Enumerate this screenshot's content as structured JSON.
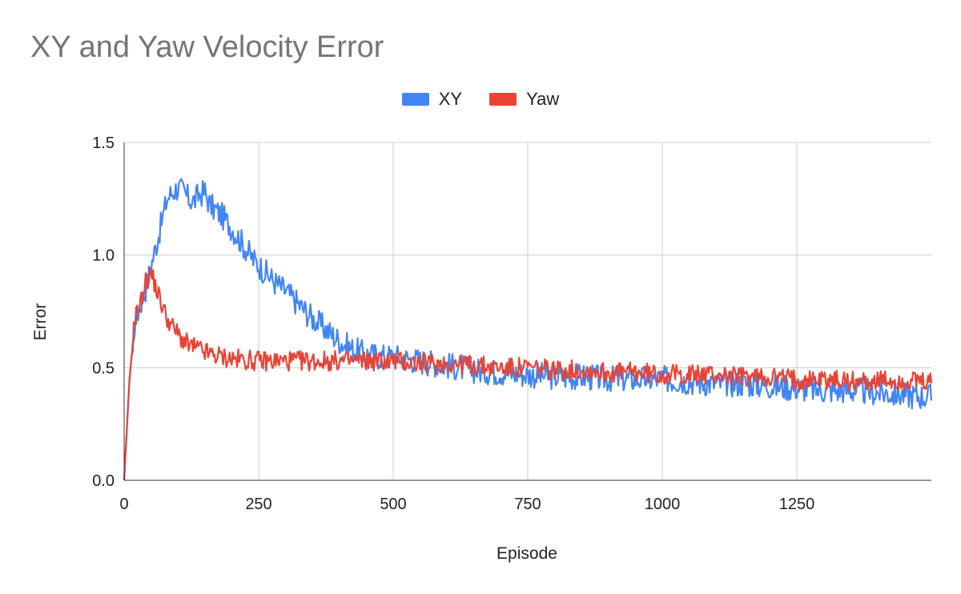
{
  "chart_data": {
    "type": "line",
    "title": "XY and Yaw Velocity Error",
    "xlabel": "Episode",
    "ylabel": "Error",
    "xlim": [
      0,
      1500
    ],
    "ylim": [
      0,
      1.5
    ],
    "x_ticks": [
      "0",
      "250",
      "500",
      "750",
      "1000",
      "1250"
    ],
    "y_ticks": [
      "0.0",
      "0.5",
      "1.0",
      "1.5"
    ],
    "grid": true,
    "legend_position": "top",
    "series": [
      {
        "name": "XY",
        "color": "#4285F4",
        "x": [
          0,
          10,
          20,
          30,
          40,
          50,
          60,
          70,
          80,
          90,
          100,
          110,
          120,
          130,
          140,
          150,
          160,
          170,
          180,
          200,
          220,
          240,
          260,
          280,
          300,
          325,
          350,
          375,
          400,
          425,
          450,
          475,
          500,
          525,
          550,
          575,
          600,
          625,
          650,
          700,
          750,
          800,
          850,
          900,
          950,
          1000,
          1050,
          1100,
          1150,
          1200,
          1250,
          1300,
          1350,
          1400,
          1450,
          1500
        ],
        "values": [
          0.0,
          0.45,
          0.7,
          0.78,
          0.85,
          0.95,
          1.05,
          1.15,
          1.25,
          1.28,
          1.3,
          1.28,
          1.25,
          1.24,
          1.27,
          1.28,
          1.22,
          1.2,
          1.18,
          1.12,
          1.05,
          0.98,
          0.93,
          0.88,
          0.84,
          0.78,
          0.72,
          0.67,
          0.62,
          0.58,
          0.56,
          0.55,
          0.55,
          0.54,
          0.53,
          0.52,
          0.51,
          0.5,
          0.49,
          0.48,
          0.47,
          0.46,
          0.46,
          0.45,
          0.45,
          0.45,
          0.44,
          0.43,
          0.43,
          0.42,
          0.41,
          0.4,
          0.4,
          0.39,
          0.38,
          0.37
        ]
      },
      {
        "name": "Yaw",
        "color": "#EA4335",
        "x": [
          0,
          10,
          20,
          30,
          40,
          50,
          60,
          70,
          80,
          90,
          100,
          110,
          120,
          140,
          160,
          180,
          200,
          250,
          300,
          350,
          400,
          450,
          500,
          550,
          600,
          650,
          700,
          750,
          800,
          850,
          900,
          950,
          1000,
          1050,
          1100,
          1150,
          1200,
          1250,
          1300,
          1350,
          1400,
          1450,
          1500
        ],
        "values": [
          0.0,
          0.45,
          0.72,
          0.78,
          0.88,
          0.92,
          0.85,
          0.78,
          0.72,
          0.68,
          0.65,
          0.62,
          0.6,
          0.58,
          0.56,
          0.55,
          0.54,
          0.53,
          0.53,
          0.53,
          0.53,
          0.53,
          0.53,
          0.52,
          0.52,
          0.51,
          0.5,
          0.5,
          0.49,
          0.49,
          0.48,
          0.48,
          0.47,
          0.47,
          0.47,
          0.46,
          0.46,
          0.45,
          0.45,
          0.44,
          0.44,
          0.44,
          0.43
        ]
      }
    ]
  }
}
